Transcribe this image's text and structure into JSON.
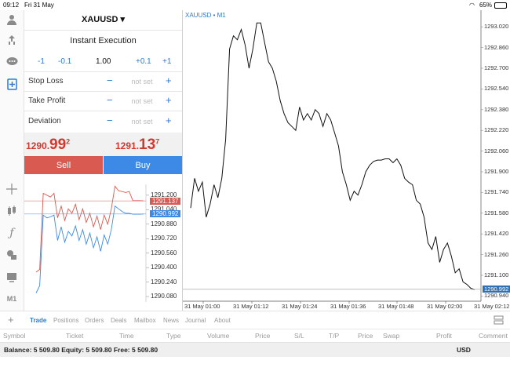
{
  "status": {
    "time": "09:12",
    "date": "Fri 31 May",
    "battery": "65%"
  },
  "trade": {
    "symbol": "XAUUSD ▾",
    "mode": "Instant Execution",
    "volume": {
      "minus1": "-1",
      "minus01": "-0.1",
      "value": "1.00",
      "plus01": "+0.1",
      "plus1": "+1"
    },
    "rows": [
      {
        "label": "Stop Loss",
        "minus": "−",
        "value": "not set",
        "plus": "+"
      },
      {
        "label": "Take Profit",
        "minus": "−",
        "value": "not set",
        "plus": "+"
      },
      {
        "label": "Deviation",
        "minus": "−",
        "value": "not set",
        "plus": "+"
      }
    ],
    "sell_price": {
      "prefix": "1290.",
      "big": "99",
      "sup": "2"
    },
    "buy_price": {
      "prefix": "1291.",
      "big": "13",
      "sup": "7"
    },
    "sell_label": "Sell",
    "buy_label": "Buy",
    "colors": {
      "sell": "#d95a50",
      "buy": "#3d8ae6",
      "price": "#d0392e"
    }
  },
  "tick_chart": {
    "ask_flag": "1291.137",
    "bid_flag": "1290.992",
    "labels": [
      "1291.200",
      "1291.040",
      "1290.880",
      "1290.720",
      "1290.560",
      "1290.400",
      "1290.240",
      "1290.080"
    ],
    "ask_series": [
      1290.35,
      1290.38,
      1291.22,
      1291.2,
      1291.18,
      1291.22,
      1290.95,
      1291.08,
      1290.92,
      1291.05,
      1291.0,
      1291.1,
      1290.93,
      1291.05,
      1290.9,
      1291.0,
      1290.85,
      1290.97,
      1290.82,
      1290.98,
      1290.88,
      1291.05,
      1291.3,
      1291.25,
      1291.24,
      1291.23,
      1291.24,
      1291.14,
      1291.14,
      1291.14,
      1291.137
    ],
    "bid_series": [
      1290.12,
      1290.2,
      1290.98,
      1290.95,
      1290.96,
      1290.98,
      1290.7,
      1290.85,
      1290.68,
      1290.8,
      1290.75,
      1290.86,
      1290.7,
      1290.82,
      1290.66,
      1290.78,
      1290.62,
      1290.74,
      1290.58,
      1290.76,
      1290.66,
      1290.82,
      1291.08,
      1291.05,
      1291.02,
      1291.0,
      1291.0,
      1290.99,
      1290.99,
      1290.99,
      1290.992
    ],
    "range": [
      1290.02,
      1291.32
    ]
  },
  "main_chart": {
    "title": "XAUUSD • M1",
    "y_labels": [
      "1293.020",
      "1292.860",
      "1292.700",
      "1292.540",
      "1292.380",
      "1292.220",
      "1292.060",
      "1291.900",
      "1291.740",
      "1291.580",
      "1291.420",
      "1291.260",
      "1291.100",
      "1290.940"
    ],
    "bid_flag": "1290.992",
    "x_labels": [
      "31 May 01:00",
      "31 May 01:12",
      "31 May 01:24",
      "31 May 01:36",
      "31 May 01:48",
      "31 May 02:00",
      "31 May 02:12"
    ],
    "series": [
      1291.62,
      1291.85,
      1291.75,
      1291.82,
      1291.55,
      1291.65,
      1291.8,
      1291.7,
      1291.85,
      1292.15,
      1292.85,
      1292.95,
      1292.92,
      1293.0,
      1292.88,
      1292.7,
      1292.85,
      1293.05,
      1293.05,
      1292.9,
      1292.75,
      1292.7,
      1292.6,
      1292.45,
      1292.35,
      1292.28,
      1292.25,
      1292.22,
      1292.4,
      1292.3,
      1292.35,
      1292.3,
      1292.38,
      1292.35,
      1292.25,
      1292.35,
      1292.3,
      1292.2,
      1292.1,
      1291.9,
      1291.8,
      1291.68,
      1291.75,
      1291.72,
      1291.8,
      1291.9,
      1291.95,
      1291.98,
      1291.99,
      1291.99,
      1292.0,
      1292.0,
      1291.97,
      1292.0,
      1291.95,
      1291.85,
      1291.82,
      1291.8,
      1291.68,
      1291.65,
      1291.55,
      1291.35,
      1291.3,
      1291.4,
      1291.2,
      1291.3,
      1291.35,
      1291.25,
      1291.12,
      1291.15,
      1291.05,
      1291.03,
      1291.0,
      1290.99
    ]
  },
  "tabs": [
    "Trade",
    "Positions",
    "Orders",
    "Deals",
    "Mailbox",
    "News",
    "Journal",
    "About"
  ],
  "columns": [
    "Symbol",
    "Ticket",
    "Time",
    "Type",
    "Volume",
    "Price",
    "S/L",
    "T/P",
    "Price",
    "Swap",
    "Profit",
    "Comment"
  ],
  "balance": "Balance: 5 509.80 Equity: 5 509.80 Free: 5 509.80",
  "currency": "USD"
}
